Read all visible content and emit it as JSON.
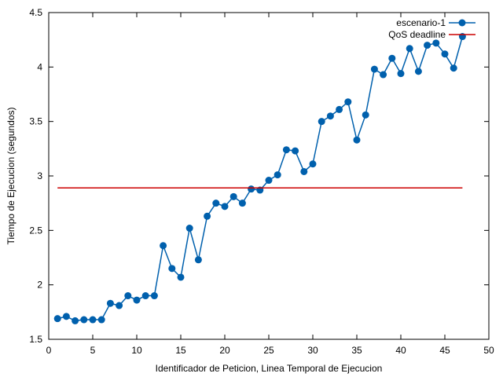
{
  "chart_data": {
    "type": "line",
    "title": "",
    "xlabel": "Identificador de Peticion, Linea Temporal de Ejecucion",
    "ylabel": "Tiempo de Ejecucion (segundos)",
    "xlim": [
      0,
      50
    ],
    "ylim": [
      1.5,
      4.5
    ],
    "x_ticks": [
      0,
      5,
      10,
      15,
      20,
      25,
      30,
      35,
      40,
      45,
      50
    ],
    "y_ticks": [
      1.5,
      2,
      2.5,
      3,
      3.5,
      4,
      4.5
    ],
    "x_tick_labels": [
      "0",
      "5",
      "10",
      "15",
      "20",
      "25",
      "30",
      "35",
      "40",
      "45",
      "50"
    ],
    "y_tick_labels": [
      "1.5",
      "2",
      "2.5",
      "3",
      "3.5",
      "4",
      "4.5"
    ],
    "grid": false,
    "legend_position": "top-right",
    "series": [
      {
        "name": "escenario-1",
        "color": "#0060ad",
        "marker": "circle",
        "x": [
          1,
          2,
          3,
          4,
          5,
          6,
          7,
          8,
          9,
          10,
          11,
          12,
          13,
          14,
          15,
          16,
          17,
          18,
          19,
          20,
          21,
          22,
          23,
          24,
          25,
          26,
          27,
          28,
          29,
          30,
          31,
          32,
          33,
          34,
          35,
          36,
          37,
          38,
          39,
          40,
          41,
          42,
          43,
          44,
          45,
          46,
          47
        ],
        "y": [
          1.69,
          1.71,
          1.67,
          1.68,
          1.68,
          1.68,
          1.83,
          1.81,
          1.9,
          1.86,
          1.9,
          1.9,
          2.36,
          2.15,
          2.07,
          2.52,
          2.23,
          2.63,
          2.75,
          2.72,
          2.81,
          2.75,
          2.88,
          2.87,
          2.96,
          3.01,
          3.24,
          3.23,
          3.04,
          3.11,
          3.5,
          3.55,
          3.61,
          3.68,
          3.33,
          3.56,
          3.98,
          3.93,
          4.08,
          3.94,
          4.17,
          3.96,
          4.2,
          4.22,
          4.12,
          3.99,
          4.28
        ]
      },
      {
        "name": "QoS deadline",
        "color": "#cc0000",
        "marker": "none",
        "x": [
          1,
          47
        ],
        "y": [
          2.89,
          2.89
        ]
      }
    ]
  }
}
